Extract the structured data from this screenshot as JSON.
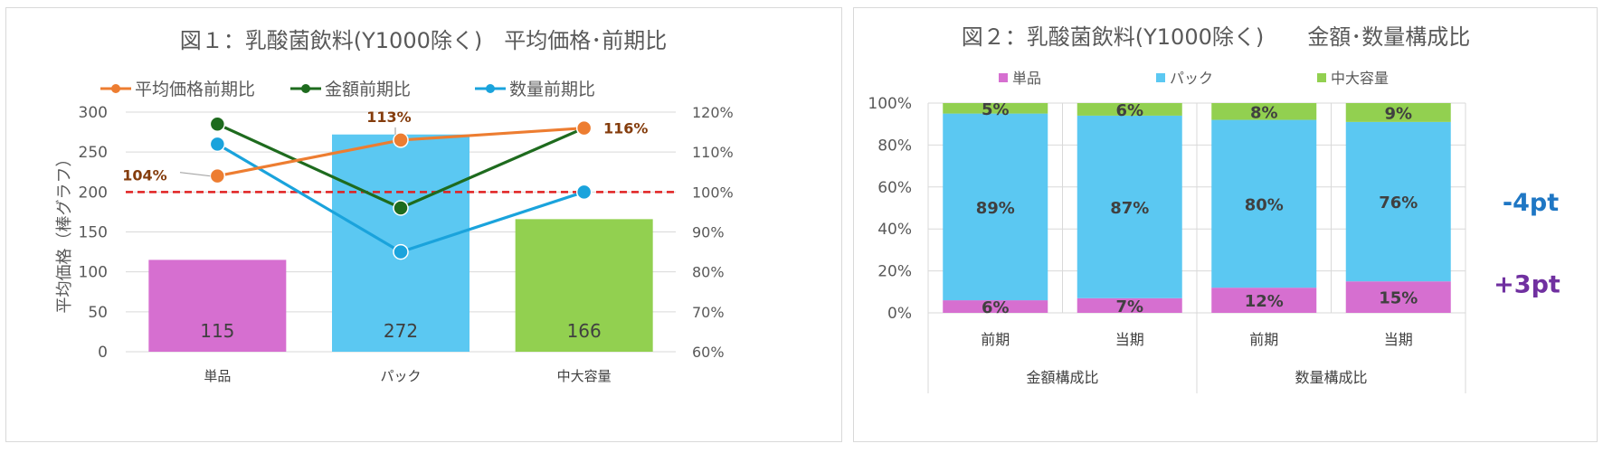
{
  "chart_data": [
    {
      "type": "bar",
      "title": "図１：乳酸菌飲料(Y1000除く)　平均価格･前期比",
      "ylabel": "平均価格（棒グラフ）",
      "categories": [
        "単品",
        "パック",
        "中大容量"
      ],
      "bars": {
        "name": "平均価格",
        "values": [
          115,
          272,
          166
        ],
        "colors": [
          "#d66fd0",
          "#5bc8f2",
          "#92d050"
        ]
      },
      "ylim": [
        0,
        300
      ],
      "y_ticks": [
        "0",
        "50",
        "100",
        "150",
        "200",
        "250",
        "300"
      ],
      "y2lim": [
        60,
        120
      ],
      "y2_ticks": [
        "60%",
        "70%",
        "80%",
        "90%",
        "100%",
        "110%",
        "120%"
      ],
      "reference_line": {
        "value": 100,
        "color": "#e02020"
      },
      "series": [
        {
          "name": "平均価格前期比",
          "axis": "right",
          "values": [
            104,
            113,
            116
          ],
          "color": "#ed7d31",
          "labels": [
            "104%",
            "113%",
            "116%"
          ]
        },
        {
          "name": "金額前期比",
          "axis": "right",
          "values": [
            117,
            96,
            116
          ],
          "color": "#1e6b1e"
        },
        {
          "name": "数量前期比",
          "axis": "right",
          "values": [
            112,
            85,
            100
          ],
          "color": "#1aa3dc"
        }
      ],
      "legend": "top",
      "grid": true
    },
    {
      "type": "bar",
      "stacked": true,
      "title": "図２：乳酸菌飲料(Y1000除く)　　金額･数量構成比",
      "categories": [
        "前期",
        "当期",
        "前期",
        "当期"
      ],
      "groups": [
        {
          "label": "金額構成比",
          "span": 2
        },
        {
          "label": "数量構成比",
          "span": 2
        }
      ],
      "series": [
        {
          "name": "単品",
          "values": [
            6,
            7,
            12,
            15
          ],
          "labels": [
            "6%",
            "7%",
            "12%",
            "15%"
          ],
          "color": "#d66fd0"
        },
        {
          "name": "パック",
          "values": [
            89,
            87,
            80,
            76
          ],
          "labels": [
            "89%",
            "87%",
            "80%",
            "76%"
          ],
          "color": "#5bc8f2"
        },
        {
          "name": "中大容量",
          "values": [
            5,
            6,
            8,
            9
          ],
          "labels": [
            "5%",
            "6%",
            "8%",
            "9%"
          ],
          "color": "#92d050"
        }
      ],
      "ylim": [
        0,
        100
      ],
      "y_ticks": [
        "0%",
        "20%",
        "40%",
        "60%",
        "80%",
        "100%"
      ],
      "annotations": [
        {
          "text": "-4pt",
          "color": "#1f77c4",
          "series": "パック"
        },
        {
          "text": "+3pt",
          "color": "#7030a0",
          "series": "単品"
        }
      ],
      "legend": "top",
      "grid": true
    }
  ]
}
